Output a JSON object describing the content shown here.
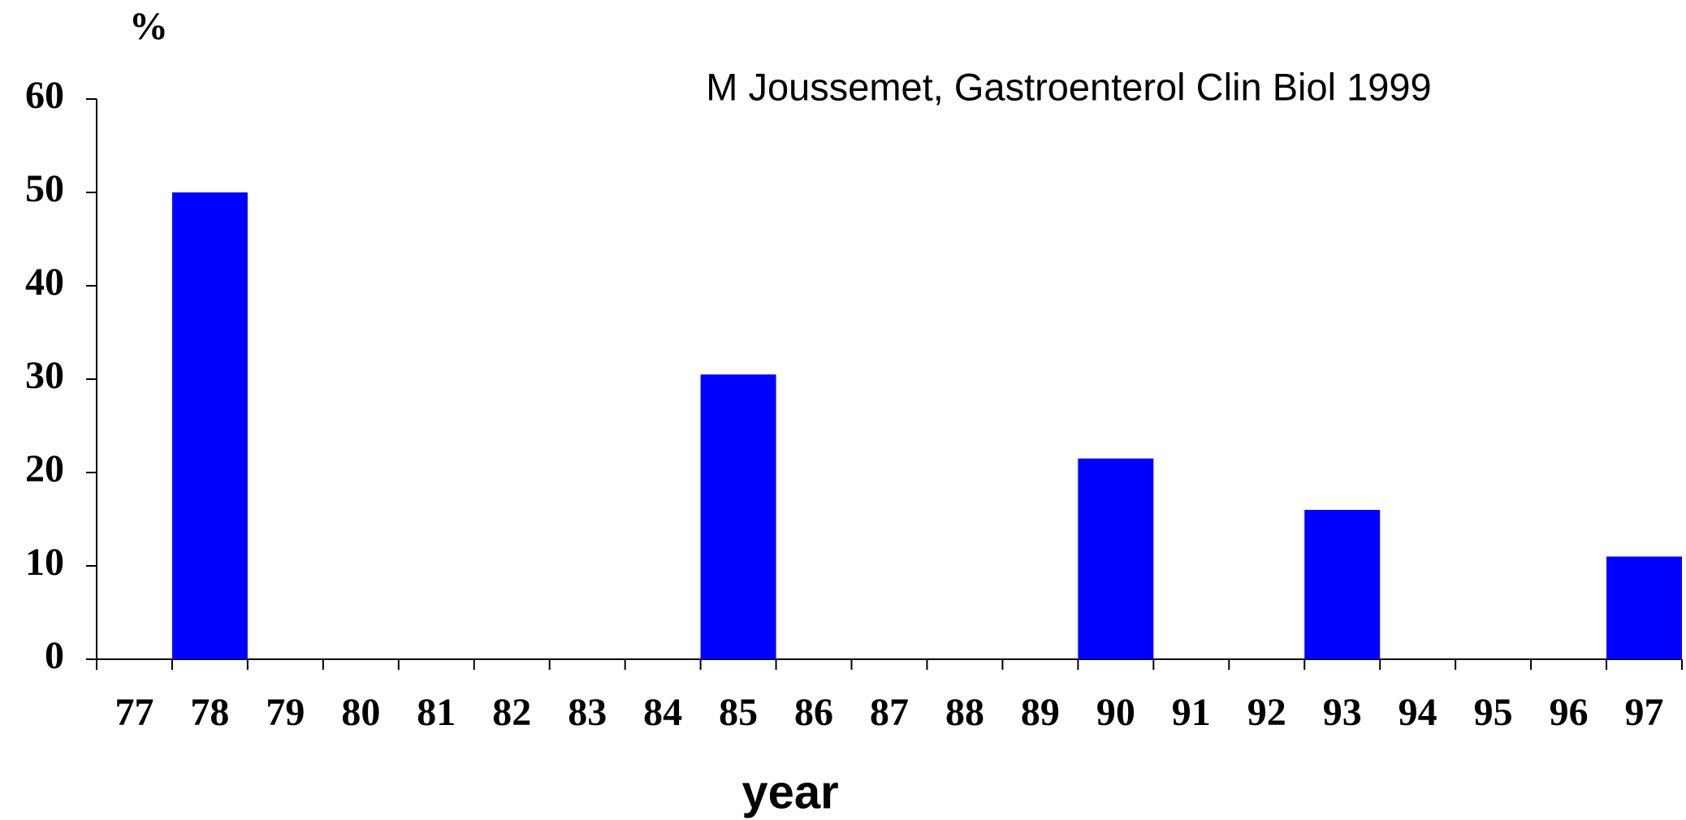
{
  "chart_data": {
    "type": "bar",
    "title": "M Joussemet, Gastroenterol Clin Biol 1999",
    "y_label": "%",
    "x_label": "year",
    "categories": [
      "77",
      "78",
      "79",
      "80",
      "81",
      "82",
      "83",
      "84",
      "85",
      "86",
      "87",
      "88",
      "89",
      "90",
      "91",
      "92",
      "93",
      "94",
      "95",
      "96",
      "97"
    ],
    "values": [
      null,
      50,
      null,
      null,
      null,
      null,
      null,
      null,
      30.5,
      null,
      null,
      null,
      null,
      21.5,
      null,
      null,
      16,
      null,
      null,
      null,
      11
    ],
    "color": "#0000ff",
    "ylim": [
      0,
      60
    ],
    "yticks": [
      0,
      10,
      20,
      30,
      40,
      50,
      60
    ],
    "grid": false
  }
}
